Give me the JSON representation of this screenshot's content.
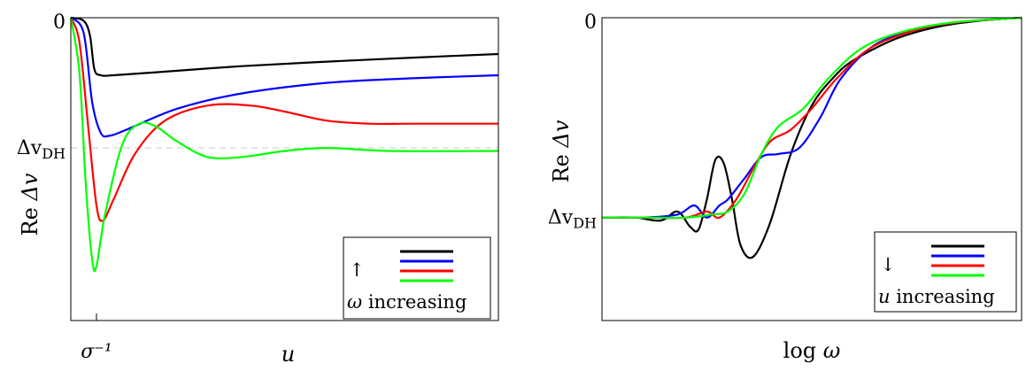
{
  "chart_data": [
    {
      "type": "line",
      "title": "",
      "xlabel": "u",
      "ylabel": "Re Δv",
      "x_ticks": [
        {
          "x": 0.06,
          "label": "σ⁻¹"
        }
      ],
      "y_ticks": [
        {
          "y": 0,
          "label": "0"
        },
        {
          "y": -0.43,
          "label": "Δv_DH"
        }
      ],
      "xlim": [
        0,
        1
      ],
      "ylim": [
        -1,
        0
      ],
      "reference_line": {
        "y": -0.43,
        "style": "dashed",
        "color": "#c8c8c8"
      },
      "legend": {
        "placement": "bottom-right",
        "arrow": "↑",
        "symbol": "ω",
        "text": "increasing"
      },
      "series": [
        {
          "color": "#000000",
          "points": [
            [
              0,
              0
            ],
            [
              0.03,
              -0.01
            ],
            [
              0.045,
              -0.06
            ],
            [
              0.055,
              -0.17
            ],
            [
              0.07,
              -0.19
            ],
            [
              0.1,
              -0.19
            ],
            [
              0.2,
              -0.18
            ],
            [
              0.4,
              -0.16
            ],
            [
              0.6,
              -0.145
            ],
            [
              0.8,
              -0.132
            ],
            [
              1.0,
              -0.12
            ]
          ]
        },
        {
          "color": "#0000ff",
          "points": [
            [
              0,
              0
            ],
            [
              0.03,
              -0.05
            ],
            [
              0.05,
              -0.28
            ],
            [
              0.07,
              -0.38
            ],
            [
              0.09,
              -0.39
            ],
            [
              0.13,
              -0.37
            ],
            [
              0.25,
              -0.3
            ],
            [
              0.4,
              -0.25
            ],
            [
              0.6,
              -0.215
            ],
            [
              0.8,
              -0.2
            ],
            [
              1.0,
              -0.19
            ]
          ]
        },
        {
          "color": "#ff0000",
          "points": [
            [
              0,
              0
            ],
            [
              0.02,
              -0.08
            ],
            [
              0.04,
              -0.35
            ],
            [
              0.06,
              -0.62
            ],
            [
              0.075,
              -0.67
            ],
            [
              0.1,
              -0.6
            ],
            [
              0.15,
              -0.45
            ],
            [
              0.22,
              -0.34
            ],
            [
              0.32,
              -0.29
            ],
            [
              0.42,
              -0.29
            ],
            [
              0.5,
              -0.31
            ],
            [
              0.6,
              -0.34
            ],
            [
              0.7,
              -0.35
            ],
            [
              0.8,
              -0.35
            ],
            [
              1.0,
              -0.35
            ]
          ]
        },
        {
          "color": "#00ff00",
          "points": [
            [
              0,
              0
            ],
            [
              0.02,
              -0.18
            ],
            [
              0.035,
              -0.55
            ],
            [
              0.05,
              -0.8
            ],
            [
              0.06,
              -0.82
            ],
            [
              0.08,
              -0.65
            ],
            [
              0.12,
              -0.42
            ],
            [
              0.16,
              -0.35
            ],
            [
              0.2,
              -0.36
            ],
            [
              0.25,
              -0.41
            ],
            [
              0.32,
              -0.46
            ],
            [
              0.4,
              -0.46
            ],
            [
              0.5,
              -0.44
            ],
            [
              0.6,
              -0.43
            ],
            [
              0.75,
              -0.44
            ],
            [
              1.0,
              -0.44
            ]
          ]
        }
      ]
    },
    {
      "type": "line",
      "title": "",
      "xlabel": "log ω",
      "ylabel": "Re Δv",
      "y_ticks": [
        {
          "y": 0,
          "label": "0"
        },
        {
          "y": -0.66,
          "label": "Δv_DH"
        }
      ],
      "xlim": [
        0,
        1
      ],
      "ylim": [
        -1,
        0
      ],
      "legend": {
        "placement": "bottom-right",
        "arrow": "↓",
        "symbol": "u",
        "text": "increasing"
      },
      "series": [
        {
          "color": "#000000",
          "points": [
            [
              0,
              -0.66
            ],
            [
              0.08,
              -0.66
            ],
            [
              0.14,
              -0.67
            ],
            [
              0.18,
              -0.64
            ],
            [
              0.21,
              -0.69
            ],
            [
              0.23,
              -0.7
            ],
            [
              0.25,
              -0.6
            ],
            [
              0.27,
              -0.47
            ],
            [
              0.29,
              -0.48
            ],
            [
              0.31,
              -0.6
            ],
            [
              0.33,
              -0.75
            ],
            [
              0.36,
              -0.79
            ],
            [
              0.4,
              -0.68
            ],
            [
              0.45,
              -0.45
            ],
            [
              0.5,
              -0.29
            ],
            [
              0.55,
              -0.2
            ],
            [
              0.6,
              -0.14
            ],
            [
              0.7,
              -0.07
            ],
            [
              0.8,
              -0.03
            ],
            [
              0.9,
              -0.01
            ],
            [
              1.0,
              0
            ]
          ]
        },
        {
          "color": "#0000ff",
          "points": [
            [
              0,
              -0.66
            ],
            [
              0.1,
              -0.66
            ],
            [
              0.18,
              -0.65
            ],
            [
              0.22,
              -0.62
            ],
            [
              0.25,
              -0.66
            ],
            [
              0.28,
              -0.62
            ],
            [
              0.3,
              -0.6
            ],
            [
              0.34,
              -0.53
            ],
            [
              0.38,
              -0.46
            ],
            [
              0.42,
              -0.45
            ],
            [
              0.47,
              -0.43
            ],
            [
              0.52,
              -0.33
            ],
            [
              0.57,
              -0.2
            ],
            [
              0.65,
              -0.09
            ],
            [
              0.75,
              -0.04
            ],
            [
              0.85,
              -0.015
            ],
            [
              1.0,
              0
            ]
          ]
        },
        {
          "color": "#ff0000",
          "points": [
            [
              0,
              -0.66
            ],
            [
              0.1,
              -0.66
            ],
            [
              0.2,
              -0.66
            ],
            [
              0.25,
              -0.64
            ],
            [
              0.28,
              -0.66
            ],
            [
              0.32,
              -0.6
            ],
            [
              0.36,
              -0.5
            ],
            [
              0.4,
              -0.41
            ],
            [
              0.45,
              -0.37
            ],
            [
              0.5,
              -0.3
            ],
            [
              0.56,
              -0.2
            ],
            [
              0.64,
              -0.1
            ],
            [
              0.75,
              -0.04
            ],
            [
              0.85,
              -0.015
            ],
            [
              1.0,
              0
            ]
          ]
        },
        {
          "color": "#00ff00",
          "points": [
            [
              0,
              -0.66
            ],
            [
              0.1,
              -0.66
            ],
            [
              0.2,
              -0.66
            ],
            [
              0.26,
              -0.65
            ],
            [
              0.3,
              -0.64
            ],
            [
              0.34,
              -0.58
            ],
            [
              0.38,
              -0.45
            ],
            [
              0.42,
              -0.36
            ],
            [
              0.48,
              -0.3
            ],
            [
              0.54,
              -0.2
            ],
            [
              0.62,
              -0.1
            ],
            [
              0.72,
              -0.045
            ],
            [
              0.84,
              -0.015
            ],
            [
              1.0,
              0
            ]
          ]
        }
      ]
    }
  ]
}
